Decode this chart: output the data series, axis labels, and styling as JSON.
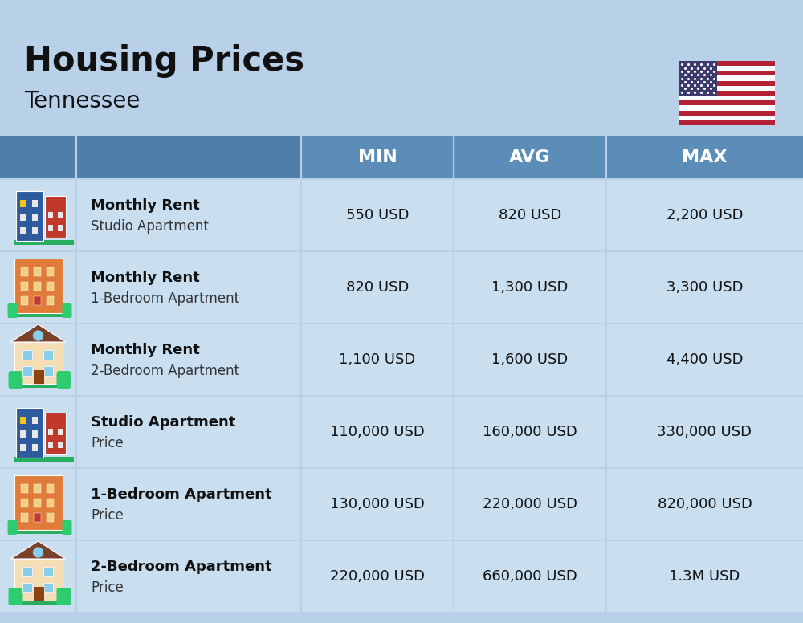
{
  "title": "Housing Prices",
  "subtitle": "Tennessee",
  "background_color": "#b8d0e8",
  "header_bg_color": "#5b8db8",
  "header_text_color": "#ffffff",
  "row_bg_color": "#c9dff0",
  "divider_color": "#b8d0e8",
  "col_headers": [
    "MIN",
    "AVG",
    "MAX"
  ],
  "rows": [
    {
      "bold_label": "Monthly Rent",
      "sub_label": "Studio Apartment",
      "min": "550 USD",
      "avg": "820 USD",
      "max": "2,200 USD",
      "icon": "studio_blue"
    },
    {
      "bold_label": "Monthly Rent",
      "sub_label": "1-Bedroom Apartment",
      "min": "820 USD",
      "avg": "1,300 USD",
      "max": "3,300 USD",
      "icon": "onebr_orange"
    },
    {
      "bold_label": "Monthly Rent",
      "sub_label": "2-Bedroom Apartment",
      "min": "1,100 USD",
      "avg": "1,600 USD",
      "max": "4,400 USD",
      "icon": "twobr_tan"
    },
    {
      "bold_label": "Studio Apartment",
      "sub_label": "Price",
      "min": "110,000 USD",
      "avg": "160,000 USD",
      "max": "330,000 USD",
      "icon": "studio_blue"
    },
    {
      "bold_label": "1-Bedroom Apartment",
      "sub_label": "Price",
      "min": "130,000 USD",
      "avg": "220,000 USD",
      "max": "820,000 USD",
      "icon": "onebr_orange"
    },
    {
      "bold_label": "2-Bedroom Apartment",
      "sub_label": "Price",
      "min": "220,000 USD",
      "avg": "660,000 USD",
      "max": "1.3M USD",
      "icon": "twobr_tan"
    }
  ]
}
